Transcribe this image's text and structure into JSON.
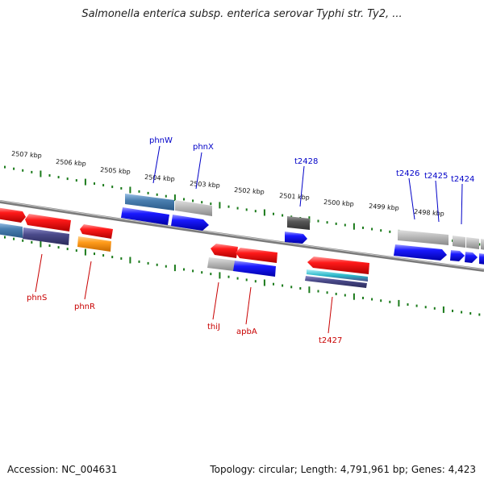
{
  "title": "Salmonella enterica subsp. enterica serovar Typhi str. Ty2, ...",
  "footer": {
    "accession": "Accession: NC_004631",
    "topology": "Topology: circular; Length: 4,791,961 bp; Genes: 4,423"
  },
  "colors": {
    "forward_label": "#0000c8",
    "reverse_label": "#c80000",
    "ruler_ticks": "#1a7a1a",
    "backbone": "#808080",
    "gene_red": "#ff1a1a",
    "gene_blue": "#1a1aff",
    "gene_gray": "#b4b4b4",
    "gene_dark": "#555555",
    "gene_orange": "#ff9b1a",
    "gene_steel": "#4a7fb0",
    "gene_purple": "#4a4a8a",
    "gene_cyan": "#2ab8c8"
  },
  "kbp_labels": [
    "2507 kbp",
    "2506 kbp",
    "2505 kbp",
    "2504 kbp",
    "2503 kbp",
    "2502 kbp",
    "2501 kbp",
    "2500 kbp",
    "2499 kbp",
    "2498 kbp"
  ],
  "forward_genes": [
    "phnW",
    "phnX",
    "t2428",
    "t2426",
    "t2425",
    "t2424"
  ],
  "reverse_genes": [
    "phnS",
    "phnR",
    "thiJ",
    "apbA",
    "t2427"
  ]
}
